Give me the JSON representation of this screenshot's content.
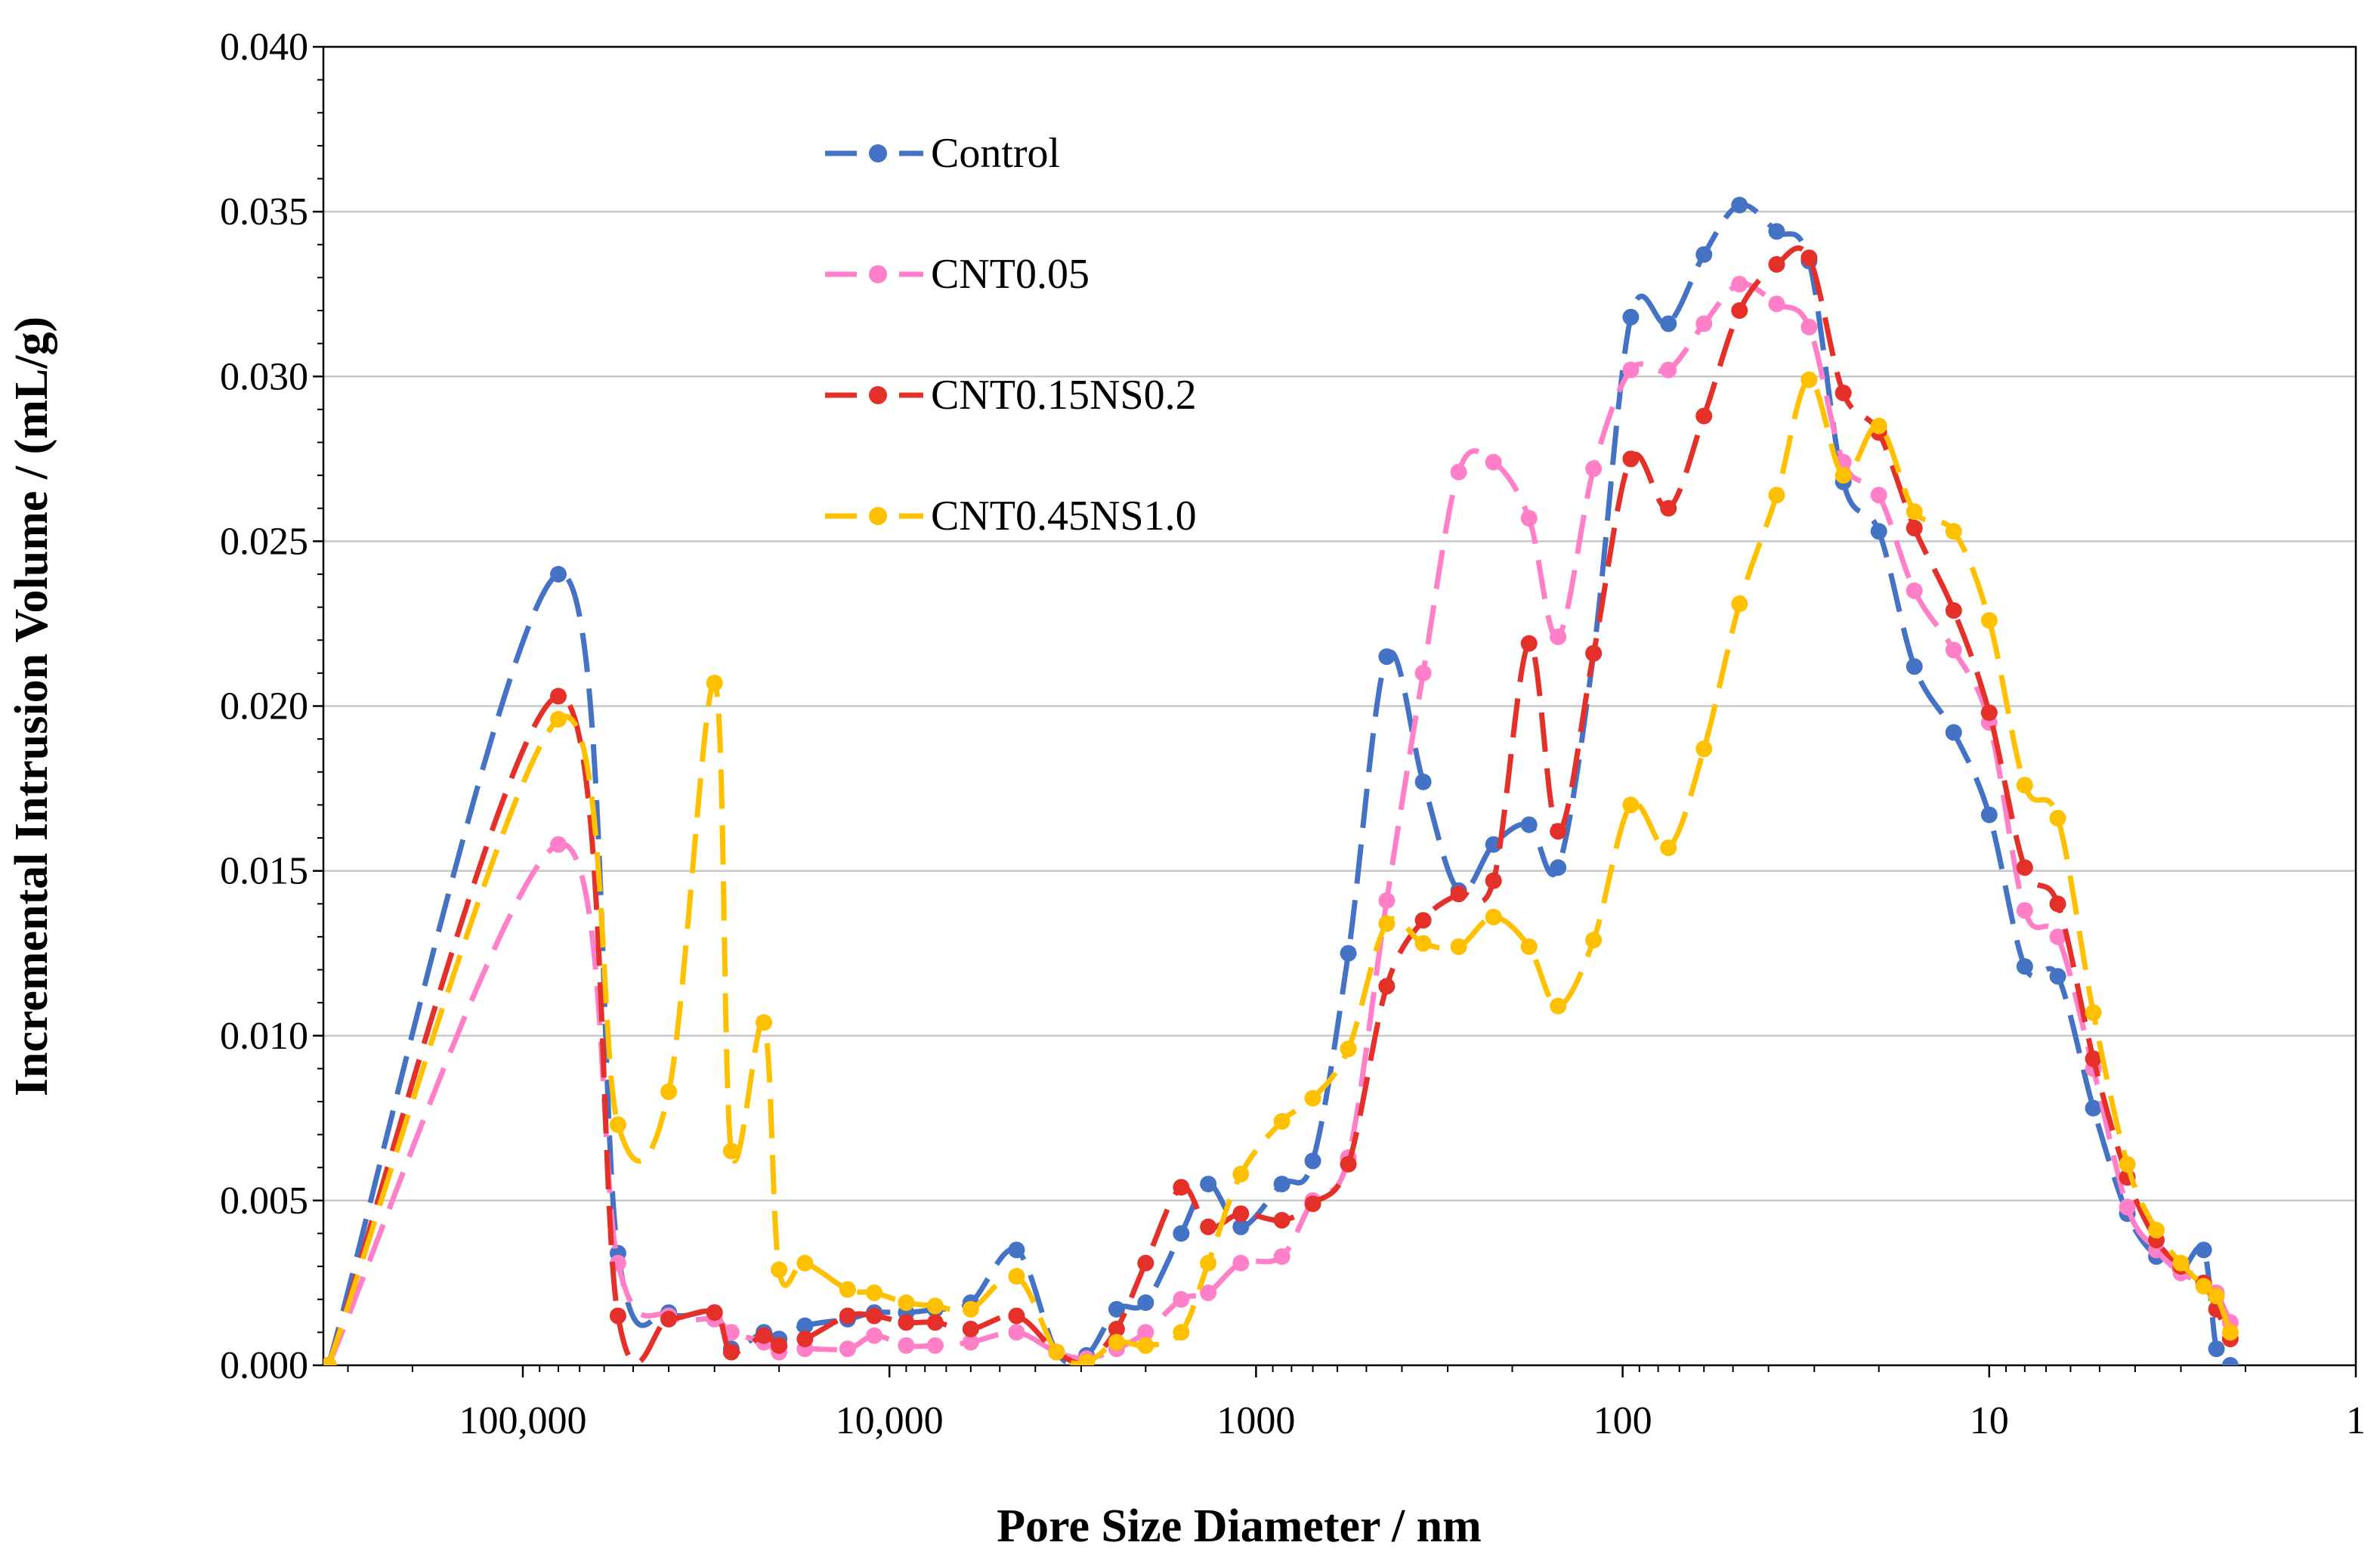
{
  "chart_data": {
    "type": "line",
    "title": "",
    "xlabel": "Pore Size Diameter / nm",
    "ylabel": "Incremental Intrusion Volume / (mL/g)",
    "xscale": "log-reversed",
    "xlim": [
      350000,
      1
    ],
    "ylim": [
      0,
      0.04
    ],
    "grid": true,
    "legend_position": "top-left-inside",
    "x_tick_labels": [
      "100,000",
      "10,000",
      "1000",
      "100",
      "10",
      "1"
    ],
    "x_tick_values": [
      100000,
      10000,
      1000,
      100,
      10,
      1
    ],
    "y_tick_labels": [
      "0.000",
      "0.005",
      "0.010",
      "0.015",
      "0.020",
      "0.025",
      "0.030",
      "0.035",
      "0.040"
    ],
    "y_tick_values": [
      0,
      0.005,
      0.01,
      0.015,
      0.02,
      0.025,
      0.03,
      0.035,
      0.04
    ],
    "series": [
      {
        "name": "Control",
        "color": "#4472C4",
        "points": [
          [
            339000,
            0.0
          ],
          [
            80000,
            0.024
          ],
          [
            55000,
            0.0034
          ],
          [
            40000,
            0.0016
          ],
          [
            30000,
            0.0016
          ],
          [
            27000,
            0.0005
          ],
          [
            22000,
            0.001
          ],
          [
            20000,
            0.0008
          ],
          [
            17000,
            0.0012
          ],
          [
            13000,
            0.0014
          ],
          [
            11000,
            0.0016
          ],
          [
            9000,
            0.0016
          ],
          [
            7500,
            0.0017
          ],
          [
            6000,
            0.0019
          ],
          [
            4500,
            0.0035
          ],
          [
            3500,
            0.0004
          ],
          [
            2900,
            0.0003
          ],
          [
            2400,
            0.0017
          ],
          [
            2000,
            0.0019
          ],
          [
            1600,
            0.004
          ],
          [
            1350,
            0.0055
          ],
          [
            1100,
            0.0042
          ],
          [
            850,
            0.0055
          ],
          [
            700,
            0.0062
          ],
          [
            560,
            0.0125
          ],
          [
            440,
            0.0215
          ],
          [
            350,
            0.0177
          ],
          [
            280,
            0.0144
          ],
          [
            225,
            0.0158
          ],
          [
            180,
            0.0164
          ],
          [
            150,
            0.0151
          ],
          [
            120,
            0.0216
          ],
          [
            95,
            0.0318
          ],
          [
            75,
            0.0316
          ],
          [
            60,
            0.0337
          ],
          [
            48,
            0.0352
          ],
          [
            38,
            0.0344
          ],
          [
            31,
            0.0335
          ],
          [
            25,
            0.0268
          ],
          [
            20,
            0.0253
          ],
          [
            16,
            0.0212
          ],
          [
            12.5,
            0.0192
          ],
          [
            10,
            0.0167
          ],
          [
            8,
            0.0121
          ],
          [
            6.5,
            0.0118
          ],
          [
            5.2,
            0.0078
          ],
          [
            4.2,
            0.0046
          ],
          [
            3.5,
            0.0033
          ],
          [
            3.0,
            0.0029
          ],
          [
            2.6,
            0.0035
          ],
          [
            2.4,
            0.0005
          ],
          [
            2.2,
            0.0
          ]
        ]
      },
      {
        "name": "CNT0.05",
        "color": "#FF7FC8",
        "points": [
          [
            339000,
            0.0
          ],
          [
            80000,
            0.0158
          ],
          [
            55000,
            0.0031
          ],
          [
            40000,
            0.0015
          ],
          [
            30000,
            0.0014
          ],
          [
            27000,
            0.001
          ],
          [
            22000,
            0.0007
          ],
          [
            20000,
            0.0004
          ],
          [
            17000,
            0.0005
          ],
          [
            13000,
            0.0005
          ],
          [
            11000,
            0.0009
          ],
          [
            9000,
            0.0006
          ],
          [
            7500,
            0.0006
          ],
          [
            6000,
            0.0007
          ],
          [
            4500,
            0.001
          ],
          [
            3500,
            0.0004
          ],
          [
            2900,
            0.0002
          ],
          [
            2400,
            0.0005
          ],
          [
            2000,
            0.001
          ],
          [
            1600,
            0.002
          ],
          [
            1350,
            0.0022
          ],
          [
            1100,
            0.0031
          ],
          [
            850,
            0.0033
          ],
          [
            700,
            0.005
          ],
          [
            560,
            0.0063
          ],
          [
            440,
            0.0141
          ],
          [
            350,
            0.021
          ],
          [
            280,
            0.0271
          ],
          [
            225,
            0.0274
          ],
          [
            180,
            0.0257
          ],
          [
            150,
            0.0221
          ],
          [
            120,
            0.0272
          ],
          [
            95,
            0.0302
          ],
          [
            75,
            0.0302
          ],
          [
            60,
            0.0316
          ],
          [
            48,
            0.0328
          ],
          [
            38,
            0.0322
          ],
          [
            31,
            0.0315
          ],
          [
            25,
            0.0274
          ],
          [
            20,
            0.0264
          ],
          [
            16,
            0.0235
          ],
          [
            12.5,
            0.0217
          ],
          [
            10,
            0.0195
          ],
          [
            8,
            0.0138
          ],
          [
            6.5,
            0.013
          ],
          [
            5.2,
            0.009
          ],
          [
            4.2,
            0.0048
          ],
          [
            3.5,
            0.0035
          ],
          [
            3.0,
            0.0028
          ],
          [
            2.6,
            0.0025
          ],
          [
            2.4,
            0.0022
          ],
          [
            2.2,
            0.0013
          ]
        ]
      },
      {
        "name": "CNT0.15NS0.2",
        "color": "#E5302A",
        "points": [
          [
            339000,
            0.0
          ],
          [
            80000,
            0.0203
          ],
          [
            55000,
            0.0015
          ],
          [
            40000,
            0.0014
          ],
          [
            30000,
            0.0016
          ],
          [
            27000,
            0.0004
          ],
          [
            22000,
            0.0009
          ],
          [
            20000,
            0.0006
          ],
          [
            17000,
            0.0008
          ],
          [
            13000,
            0.0015
          ],
          [
            11000,
            0.0015
          ],
          [
            9000,
            0.0013
          ],
          [
            7500,
            0.0013
          ],
          [
            6000,
            0.0011
          ],
          [
            4500,
            0.0015
          ],
          [
            3500,
            0.0004
          ],
          [
            2900,
            0.0001
          ],
          [
            2400,
            0.0011
          ],
          [
            2000,
            0.0031
          ],
          [
            1600,
            0.0054
          ],
          [
            1350,
            0.0042
          ],
          [
            1100,
            0.0046
          ],
          [
            850,
            0.0044
          ],
          [
            700,
            0.0049
          ],
          [
            560,
            0.0061
          ],
          [
            440,
            0.0115
          ],
          [
            350,
            0.0135
          ],
          [
            280,
            0.0143
          ],
          [
            225,
            0.0147
          ],
          [
            180,
            0.0219
          ],
          [
            150,
            0.0162
          ],
          [
            120,
            0.0216
          ],
          [
            95,
            0.0275
          ],
          [
            75,
            0.026
          ],
          [
            60,
            0.0288
          ],
          [
            48,
            0.032
          ],
          [
            38,
            0.0334
          ],
          [
            31,
            0.0336
          ],
          [
            25,
            0.0295
          ],
          [
            20,
            0.0283
          ],
          [
            16,
            0.0254
          ],
          [
            12.5,
            0.0229
          ],
          [
            10,
            0.0198
          ],
          [
            8,
            0.0151
          ],
          [
            6.5,
            0.014
          ],
          [
            5.2,
            0.0093
          ],
          [
            4.2,
            0.0057
          ],
          [
            3.5,
            0.0038
          ],
          [
            3.0,
            0.003
          ],
          [
            2.6,
            0.0025
          ],
          [
            2.4,
            0.0017
          ],
          [
            2.2,
            0.0008
          ]
        ]
      },
      {
        "name": "CNT0.45NS1.0",
        "color": "#FFC000",
        "points": [
          [
            339000,
            0.0
          ],
          [
            80000,
            0.0196
          ],
          [
            55000,
            0.0073
          ],
          [
            40000,
            0.0083
          ],
          [
            30000,
            0.0207
          ],
          [
            27000,
            0.0065
          ],
          [
            22000,
            0.0104
          ],
          [
            20000,
            0.0029
          ],
          [
            17000,
            0.0031
          ],
          [
            13000,
            0.0023
          ],
          [
            11000,
            0.0022
          ],
          [
            9000,
            0.0019
          ],
          [
            7500,
            0.0018
          ],
          [
            6000,
            0.0017
          ],
          [
            4500,
            0.0027
          ],
          [
            3500,
            0.0004
          ],
          [
            2900,
            0.0001
          ],
          [
            2400,
            0.0007
          ],
          [
            2000,
            0.0006
          ],
          [
            1600,
            0.001
          ],
          [
            1350,
            0.0031
          ],
          [
            1100,
            0.0058
          ],
          [
            850,
            0.0074
          ],
          [
            700,
            0.0081
          ],
          [
            560,
            0.0096
          ],
          [
            440,
            0.0134
          ],
          [
            350,
            0.0128
          ],
          [
            280,
            0.0127
          ],
          [
            225,
            0.0136
          ],
          [
            180,
            0.0127
          ],
          [
            150,
            0.0109
          ],
          [
            120,
            0.0129
          ],
          [
            95,
            0.017
          ],
          [
            75,
            0.0157
          ],
          [
            60,
            0.0187
          ],
          [
            48,
            0.0231
          ],
          [
            38,
            0.0264
          ],
          [
            31,
            0.0299
          ],
          [
            25,
            0.027
          ],
          [
            20,
            0.0285
          ],
          [
            16,
            0.0259
          ],
          [
            12.5,
            0.0253
          ],
          [
            10,
            0.0226
          ],
          [
            8,
            0.0176
          ],
          [
            6.5,
            0.0166
          ],
          [
            5.2,
            0.0107
          ],
          [
            4.2,
            0.0061
          ],
          [
            3.5,
            0.0041
          ],
          [
            3.0,
            0.0031
          ],
          [
            2.6,
            0.0024
          ],
          [
            2.4,
            0.0021
          ],
          [
            2.2,
            0.001
          ]
        ]
      }
    ]
  }
}
